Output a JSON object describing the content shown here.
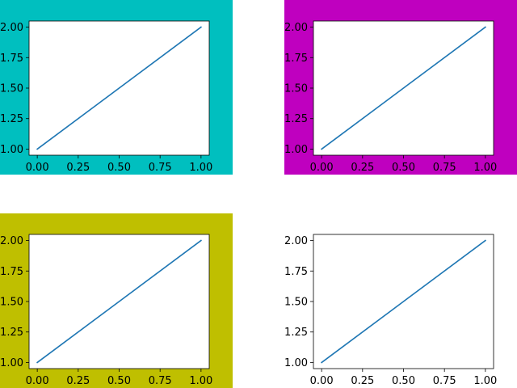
{
  "figure": {
    "background": "#ffffff",
    "line_color": "#1f77b4",
    "axes_frame_color": "#000000",
    "axes_face_color": "#ffffff"
  },
  "chart_data": [
    {
      "type": "line",
      "panel_background": "#00bfbf",
      "x": [
        0.0,
        1.0
      ],
      "series": [
        {
          "values": [
            1.0,
            2.0
          ]
        }
      ],
      "xlim": [
        -0.05,
        1.05
      ],
      "ylim": [
        0.95,
        2.05
      ],
      "xticks": [
        "0.00",
        "0.25",
        "0.50",
        "0.75",
        "1.00"
      ],
      "yticks": [
        "1.00",
        "1.25",
        "1.50",
        "1.75",
        "2.00"
      ],
      "grid": false,
      "title": "",
      "xlabel": "",
      "ylabel": ""
    },
    {
      "type": "line",
      "panel_background": "#bf00bf",
      "x": [
        0.0,
        1.0
      ],
      "series": [
        {
          "values": [
            1.0,
            2.0
          ]
        }
      ],
      "xlim": [
        -0.05,
        1.05
      ],
      "ylim": [
        0.95,
        2.05
      ],
      "xticks": [
        "0.00",
        "0.25",
        "0.50",
        "0.75",
        "1.00"
      ],
      "yticks": [
        "1.00",
        "1.25",
        "1.50",
        "1.75",
        "2.00"
      ],
      "grid": false,
      "title": "",
      "xlabel": "",
      "ylabel": ""
    },
    {
      "type": "line",
      "panel_background": "#bfbf00",
      "x": [
        0.0,
        1.0
      ],
      "series": [
        {
          "values": [
            1.0,
            2.0
          ]
        }
      ],
      "xlim": [
        -0.05,
        1.05
      ],
      "ylim": [
        0.95,
        2.05
      ],
      "xticks": [
        "0.00",
        "0.25",
        "0.50",
        "0.75",
        "1.00"
      ],
      "yticks": [
        "1.00",
        "1.25",
        "1.50",
        "1.75",
        "2.00"
      ],
      "grid": false,
      "title": "",
      "xlabel": "",
      "ylabel": ""
    },
    {
      "type": "line",
      "panel_background": "#ffffff",
      "x": [
        0.0,
        1.0
      ],
      "series": [
        {
          "values": [
            1.0,
            2.0
          ]
        }
      ],
      "xlim": [
        -0.05,
        1.05
      ],
      "ylim": [
        0.95,
        2.05
      ],
      "xticks": [
        "0.00",
        "0.25",
        "0.50",
        "0.75",
        "1.00"
      ],
      "yticks": [
        "1.00",
        "1.25",
        "1.50",
        "1.75",
        "2.00"
      ],
      "grid": false,
      "title": "",
      "xlabel": "",
      "ylabel": ""
    }
  ]
}
